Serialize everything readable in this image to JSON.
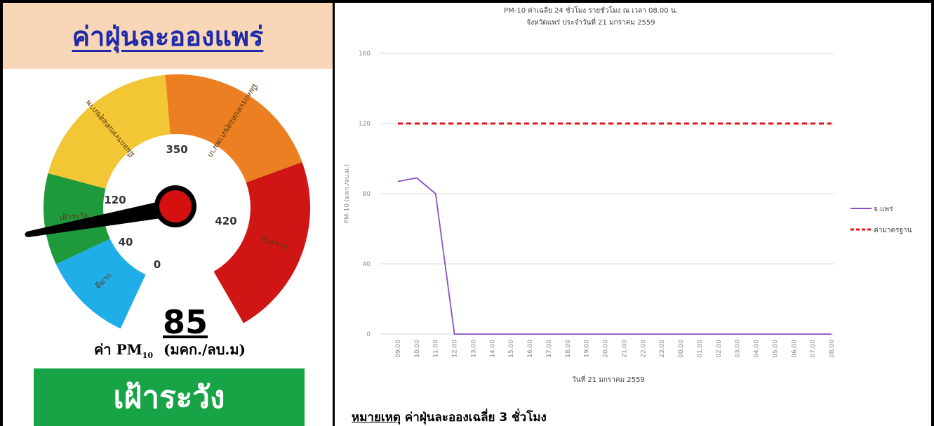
{
  "left_panel": {
    "title": "ค่าฝุ่นละอองแพร่",
    "gauge": {
      "bands": [
        {
          "label": "ดีมาก",
          "color": "#1faee8"
        },
        {
          "label": "เฝ้าระวัง",
          "color": "#1e9a3c"
        },
        {
          "label": "มีผลกระทบต่อสุขภาพ",
          "color": "#f2c634"
        },
        {
          "label": "มีผลกระทบต่อสุขภาพมาก",
          "color": "#ec7f22"
        },
        {
          "label": "อันตราย",
          "color": "#d01515"
        }
      ],
      "ticks": [
        "0",
        "40",
        "120",
        "350",
        "420"
      ],
      "needle_value": 85,
      "needle_color": "#000000",
      "hub_color": "#d41010"
    },
    "value": "85",
    "unit_prefix": "ค่า PM",
    "unit_sub": "10",
    "unit_suffix": "(มคก./ลบ.ม)",
    "status": "เฝ้าระวัง",
    "status_color": "#17a346"
  },
  "right_panel": {
    "note_label": "หมายเหตุ",
    "note_text": "ค่าฝุ่นละอองเฉลี่ย 3 ชั่วโมง"
  },
  "chart_data": {
    "type": "line",
    "title": "PM-10 ค่าเฉลี่ย 24 ชั่วโมง รายชั่วโมง ณ เวลา 08.00 น.",
    "subtitle": "จังหวัดแพร่ ประจำวันที่ 21 มกราคม 2559",
    "xlabel": "วันที่ 21 มกราคม 2559",
    "ylabel": "PM-10 (มคก./ลบ.ม.)",
    "ylim": [
      0,
      160
    ],
    "yticks": [
      0,
      40,
      80,
      120,
      160
    ],
    "grid": true,
    "legend_position": "right",
    "categories": [
      "09.00",
      "10.00",
      "11.00",
      "12.00",
      "13.00",
      "14.00",
      "15.00",
      "16.00",
      "17.00",
      "18.00",
      "19.00",
      "20.00",
      "21.00",
      "22.00",
      "23.00",
      "00.00",
      "01.00",
      "02.00",
      "03.00",
      "04.00",
      "05.00",
      "06.00",
      "07.00",
      "08.00"
    ],
    "series": [
      {
        "name": "จ.แพร่",
        "color": "#8b4fc0",
        "style": "solid",
        "values": [
          87,
          89,
          80,
          0,
          0,
          0,
          0,
          0,
          0,
          0,
          0,
          0,
          0,
          0,
          0,
          0,
          0,
          0,
          0,
          0,
          0,
          0,
          0,
          0
        ]
      },
      {
        "name": "ค่ามาตรฐาน",
        "color": "#e0161b",
        "style": "dashed",
        "values": [
          120,
          120,
          120,
          120,
          120,
          120,
          120,
          120,
          120,
          120,
          120,
          120,
          120,
          120,
          120,
          120,
          120,
          120,
          120,
          120,
          120,
          120,
          120,
          120
        ]
      }
    ]
  }
}
